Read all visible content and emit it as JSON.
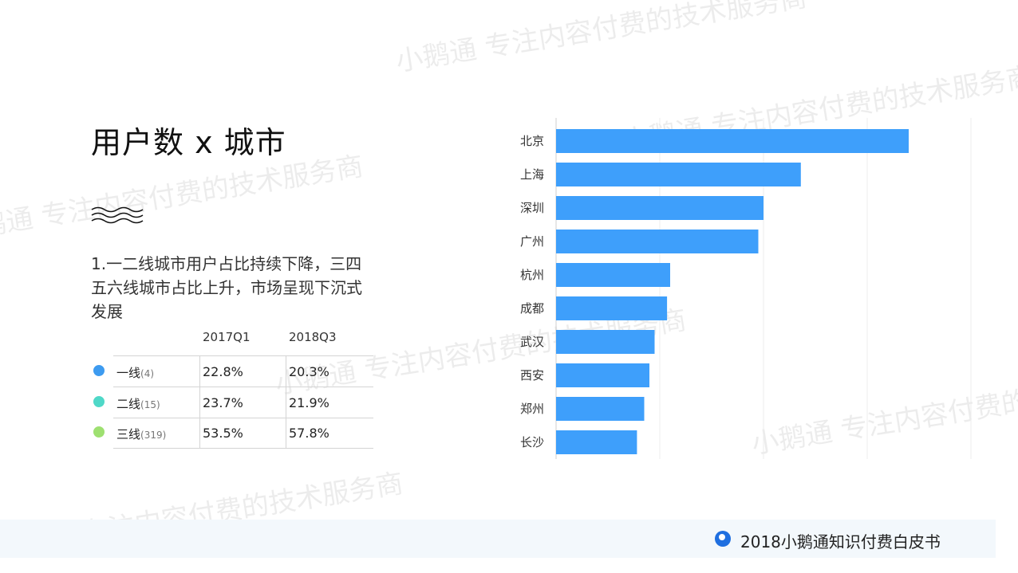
{
  "watermark": "小鹅通 专注内容付费的技术服务商",
  "title": "用户数 x 城市",
  "description": "1.一二线城市用户占比持续下降，三四五六线城市占比上升，市场呈现下沉式发展",
  "table": {
    "headers": [
      "2017Q1",
      "2018Q3"
    ],
    "rows": [
      {
        "label": "一线",
        "count": "(4)",
        "v2017": "22.8%",
        "v2018": "20.3%",
        "color": "#3d9bf0"
      },
      {
        "label": "二线",
        "count": "(15)",
        "v2017": "23.7%",
        "v2018": "21.9%",
        "color": "#4fd8c8"
      },
      {
        "label": "三线",
        "count": "(319)",
        "v2017": "53.5%",
        "v2018": "57.8%",
        "color": "#9ee071"
      }
    ]
  },
  "chart_data": {
    "type": "bar",
    "orientation": "horizontal",
    "categories": [
      "北京",
      "上海",
      "深圳",
      "广州",
      "杭州",
      "成都",
      "武汉",
      "西安",
      "郑州",
      "长沙"
    ],
    "values": [
      34,
      23.6,
      20,
      19.5,
      11,
      10.7,
      9.5,
      9,
      8.5,
      7.8
    ],
    "xlim": [
      0,
      40
    ],
    "grid": true,
    "bar_color": "#3e9ffb"
  },
  "footer": {
    "text": "2018小鹅通知识付费白皮书"
  }
}
